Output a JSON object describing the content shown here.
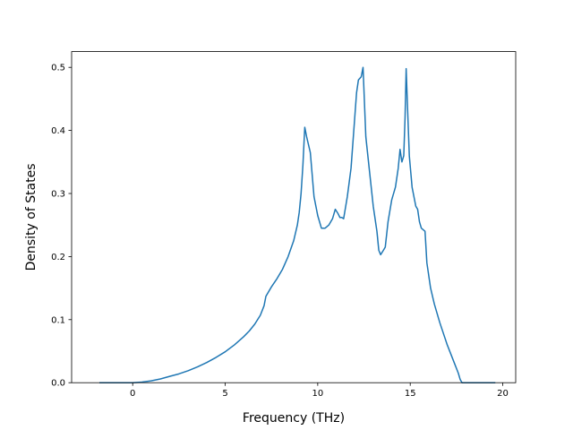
{
  "chart_data": {
    "type": "line",
    "title": "",
    "xlabel": "Frequency (THz)",
    "ylabel": "Density of States",
    "xlim": [
      -3.3,
      20.7
    ],
    "ylim": [
      0,
      0.525
    ],
    "xticks": [
      0,
      5,
      10,
      15,
      20
    ],
    "yticks": [
      0.0,
      0.1,
      0.2,
      0.3,
      0.4,
      0.5
    ],
    "xtick_labels": [
      "0",
      "5",
      "10",
      "15",
      "20"
    ],
    "ytick_labels": [
      "0.0",
      "0.1",
      "0.2",
      "0.3",
      "0.4",
      "0.5"
    ],
    "grid": false,
    "legend": null,
    "series": [
      {
        "color": "#1f77b4",
        "x": [
          -1.8,
          0.0,
          0.5,
          1.0,
          1.5,
          2.0,
          2.5,
          3.0,
          3.5,
          4.0,
          4.5,
          5.0,
          5.5,
          6.0,
          6.3,
          6.6,
          6.9,
          7.1,
          7.2,
          7.5,
          7.8,
          8.1,
          8.4,
          8.7,
          8.9,
          9.0,
          9.1,
          9.2,
          9.3,
          9.4,
          9.6,
          9.8,
          10.0,
          10.2,
          10.4,
          10.6,
          10.8,
          10.95,
          11.1,
          11.2,
          11.3,
          11.4,
          11.6,
          11.8,
          12.0,
          12.1,
          12.2,
          12.35,
          12.45,
          12.6,
          12.8,
          13.0,
          13.2,
          13.3,
          13.4,
          13.55,
          13.65,
          13.8,
          14.0,
          14.2,
          14.35,
          14.45,
          14.55,
          14.65,
          14.72,
          14.78,
          14.85,
          14.95,
          15.1,
          15.3,
          15.4,
          15.5,
          15.6,
          15.8,
          15.9,
          16.1,
          16.3,
          16.6,
          17.0,
          17.4,
          17.6,
          17.7,
          17.8,
          17.85,
          18.0,
          19.6
        ],
        "y": [
          0.0,
          0.0,
          0.001,
          0.003,
          0.006,
          0.01,
          0.014,
          0.019,
          0.025,
          0.032,
          0.04,
          0.049,
          0.06,
          0.073,
          0.082,
          0.093,
          0.107,
          0.122,
          0.137,
          0.152,
          0.165,
          0.18,
          0.2,
          0.225,
          0.25,
          0.27,
          0.3,
          0.345,
          0.405,
          0.39,
          0.365,
          0.295,
          0.265,
          0.245,
          0.245,
          0.25,
          0.26,
          0.275,
          0.268,
          0.262,
          0.262,
          0.26,
          0.295,
          0.34,
          0.42,
          0.46,
          0.48,
          0.485,
          0.5,
          0.39,
          0.335,
          0.28,
          0.24,
          0.21,
          0.203,
          0.21,
          0.215,
          0.255,
          0.29,
          0.31,
          0.34,
          0.37,
          0.35,
          0.36,
          0.42,
          0.498,
          0.44,
          0.36,
          0.31,
          0.28,
          0.275,
          0.255,
          0.245,
          0.24,
          0.19,
          0.15,
          0.125,
          0.095,
          0.06,
          0.03,
          0.015,
          0.005,
          0.0,
          0.0,
          0.0,
          0.0
        ]
      }
    ]
  }
}
